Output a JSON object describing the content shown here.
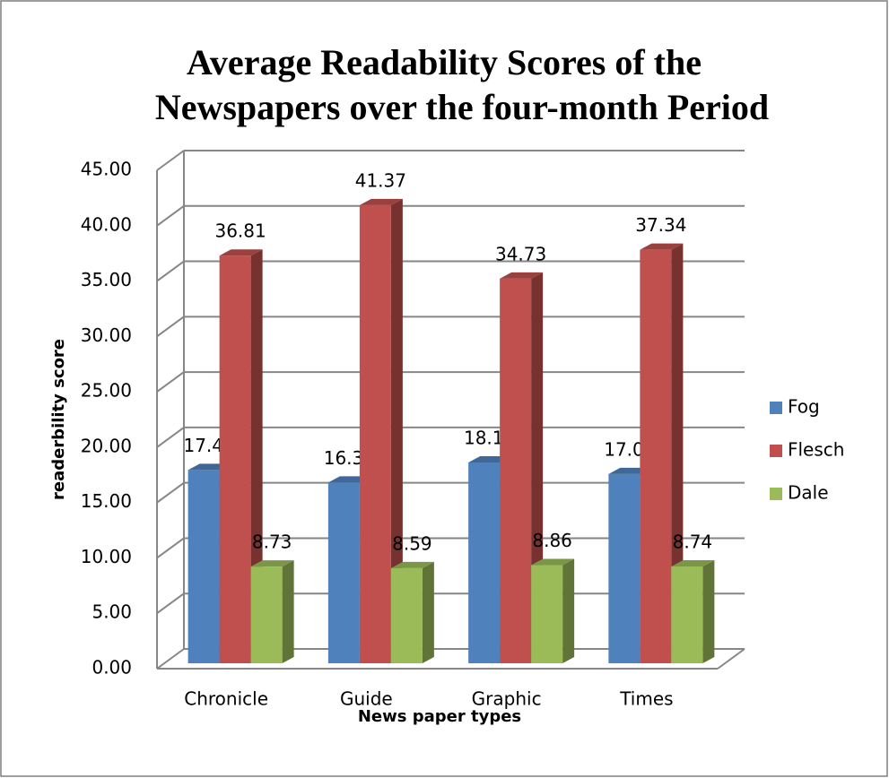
{
  "chart_data": {
    "type": "bar3d",
    "title": [
      "Average Readability Scores of the",
      "Newspapers over the four-month Period"
    ],
    "xlabel": "News paper types",
    "ylabel": "readerbility score",
    "categories": [
      "Chronicle",
      "Guide",
      "Graphic",
      "Times"
    ],
    "series": [
      {
        "name": "Fog",
        "color": "#4f81bd",
        "values": [
          17.45,
          16.32,
          18.13,
          17.09
        ]
      },
      {
        "name": "Flesch",
        "color": "#c0504d",
        "values": [
          36.81,
          41.37,
          34.73,
          37.34
        ]
      },
      {
        "name": "Dale",
        "color": "#9bbb59",
        "values": [
          8.73,
          8.59,
          8.86,
          8.74
        ]
      }
    ],
    "ylim": [
      0,
      45
    ],
    "yticks": [
      {
        "value": 0,
        "label": "0.00"
      },
      {
        "value": 5,
        "label": "5.00"
      },
      {
        "value": 10,
        "label": "10.00"
      },
      {
        "value": 15,
        "label": "15.00"
      },
      {
        "value": 20,
        "label": "20.00"
      },
      {
        "value": 25,
        "label": "25.00"
      },
      {
        "value": 30,
        "label": "30.00"
      },
      {
        "value": 35,
        "label": "35.00"
      },
      {
        "value": 40,
        "label": "40.00"
      },
      {
        "value": 45,
        "label": "45.00"
      }
    ],
    "grid": true,
    "legend": "right"
  }
}
